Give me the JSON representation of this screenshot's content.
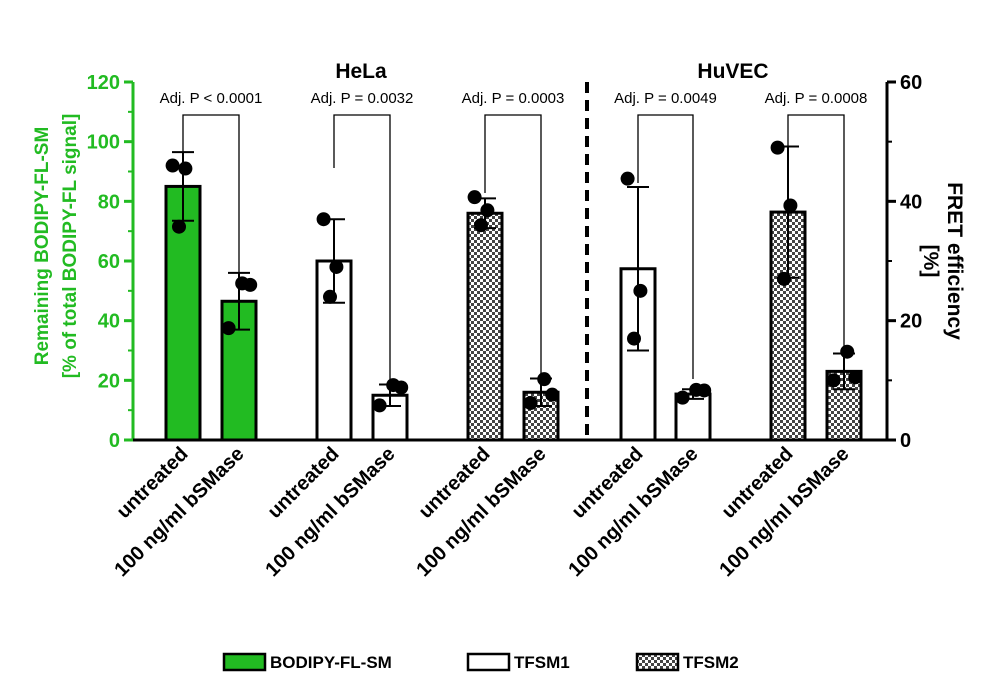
{
  "chart_data": {
    "type": "bar",
    "groups": [
      "HeLa",
      "HuVEC"
    ],
    "left_axis": {
      "label_line1": "Remaining BODIPY-FL-SM",
      "label_line2": "[% of total  BODIPY-FL signal]",
      "ylim": [
        0,
        120
      ],
      "ticks": [
        "0",
        "20",
        "40",
        "60",
        "80",
        "100",
        "120"
      ],
      "color": "#22bb22"
    },
    "right_axis": {
      "label_line1": "FRET efficiency",
      "label_line2": "[%]",
      "ylim": [
        0,
        60
      ],
      "ticks": [
        "0",
        "20",
        "40",
        "60"
      ]
    },
    "bars": [
      {
        "group": "HeLa",
        "condition": "untreated",
        "series": "BODIPY-FL-SM",
        "axis": "left",
        "value": 85,
        "sd": 11.5,
        "points": [
          92,
          91,
          71.5
        ]
      },
      {
        "group": "HeLa",
        "condition": "100 ng/ml bSMase",
        "series": "BODIPY-FL-SM",
        "axis": "left",
        "value": 46.5,
        "sd": 9.5,
        "points": [
          52.5,
          52,
          37.5
        ]
      },
      {
        "group": "HeLa",
        "condition": "untreated",
        "series": "TFSM1",
        "axis": "right",
        "value": 30,
        "sd": 7,
        "points": [
          37,
          29,
          24
        ]
      },
      {
        "group": "HeLa",
        "condition": "100 ng/ml bSMase",
        "series": "TFSM1",
        "axis": "right",
        "value": 7.5,
        "sd": 1.8,
        "points": [
          9.2,
          8.8,
          5.8
        ]
      },
      {
        "group": "HeLa",
        "condition": "untreated",
        "series": "TFSM2",
        "axis": "right",
        "value": 38,
        "sd": 2.5,
        "points": [
          40.7,
          38.5,
          36
        ]
      },
      {
        "group": "HeLa",
        "condition": "100 ng/ml bSMase",
        "series": "TFSM2",
        "axis": "right",
        "value": 8,
        "sd": 2.3,
        "points": [
          10.2,
          7.6,
          6.2
        ]
      },
      {
        "group": "HuVEC",
        "condition": "untreated",
        "series": "TFSM1",
        "axis": "right",
        "value": 28.7,
        "sd": 13.7,
        "points": [
          43.8,
          25,
          17
        ]
      },
      {
        "group": "HuVEC",
        "condition": "100 ng/ml bSMase",
        "series": "TFSM1",
        "axis": "right",
        "value": 7.7,
        "sd": 0.8,
        "points": [
          8.4,
          8.3,
          7.1
        ]
      },
      {
        "group": "HuVEC",
        "condition": "untreated",
        "series": "TFSM2",
        "axis": "right",
        "value": 38.2,
        "sd": 11,
        "points": [
          49,
          39.3,
          27
        ]
      },
      {
        "group": "HuVEC",
        "condition": "100 ng/ml bSMase",
        "series": "TFSM2",
        "axis": "right",
        "value": 11.5,
        "sd": 3,
        "points": [
          14.8,
          10.5,
          10
        ]
      }
    ],
    "annotations": [
      "Adj. P < 0.0001",
      "Adj. P = 0.0032",
      "Adj. P = 0.0003",
      "Adj. P = 0.0049",
      "Adj. P = 0.0008"
    ],
    "legend": [
      {
        "name": "BODIPY-FL-SM",
        "fill": "solid",
        "color": "#22bb22"
      },
      {
        "name": "TFSM1",
        "fill": "white"
      },
      {
        "name": "TFSM2",
        "fill": "checkered"
      }
    ],
    "legend_position": "bottom"
  }
}
